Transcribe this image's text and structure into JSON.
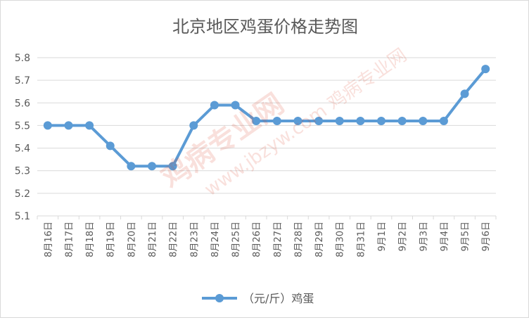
{
  "chart_data": {
    "type": "line",
    "title": "北京地区鸡蛋价格走势图",
    "categories": [
      "8月16日",
      "8月17日",
      "8月18日",
      "8月19日",
      "8月20日",
      "8月21日",
      "8月22日",
      "8月23日",
      "8月24日",
      "8月25日",
      "8月26日",
      "8月27日",
      "8月28日",
      "8月29日",
      "8月30日",
      "8月31日",
      "9月1日",
      "9月2日",
      "9月3日",
      "9月4日",
      "9月5日",
      "9月6日"
    ],
    "series": [
      {
        "name": "（元/斤）鸡蛋",
        "values": [
          5.5,
          5.5,
          5.5,
          5.41,
          5.32,
          5.32,
          5.32,
          5.5,
          5.59,
          5.59,
          5.52,
          5.52,
          5.52,
          5.52,
          5.52,
          5.52,
          5.52,
          5.52,
          5.52,
          5.52,
          5.64,
          5.75
        ]
      }
    ],
    "y_ticks": [
      "5.1",
      "5.2",
      "5.3",
      "5.4",
      "5.5",
      "5.6",
      "5.7",
      "5.8"
    ],
    "ylim": [
      5.1,
      5.8
    ],
    "xlabel": "",
    "ylabel": "",
    "grid": true,
    "legend": "bottom",
    "colors": {
      "line": "#5b9bd5",
      "grid": "#d9d9d9",
      "text": "#595959"
    }
  },
  "watermark": {
    "line1": "鸡病专业网",
    "line2": "www.jbzyw.com 鸡病专业网"
  }
}
